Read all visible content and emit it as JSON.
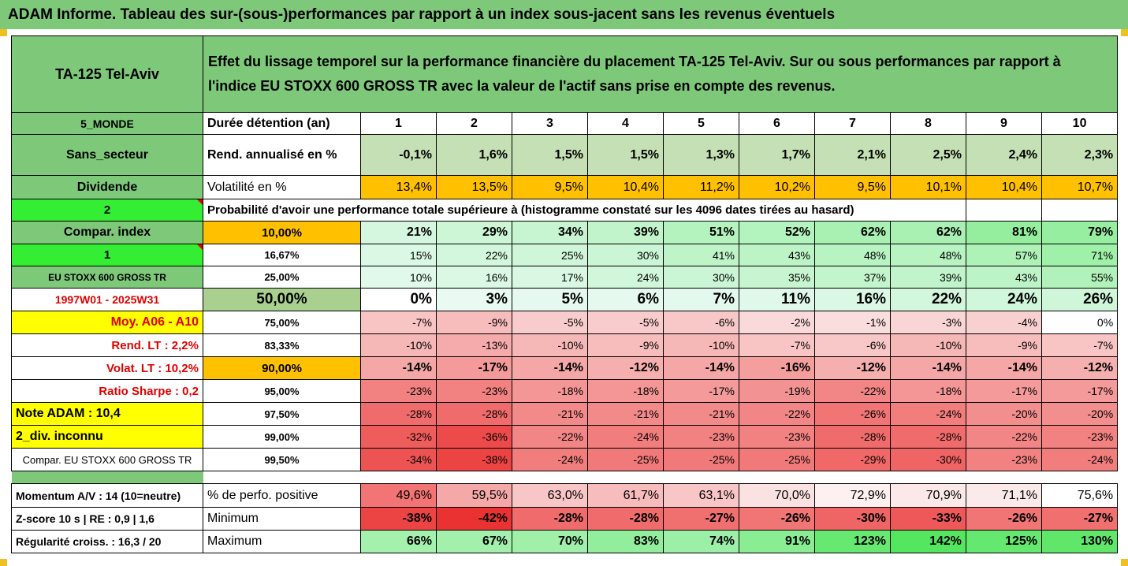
{
  "title": "ADAM Informe. Tableau des sur-(sous-)performances par rapport à un index sous-jacent sans les revenus éventuels",
  "header": {
    "asset": "TA-125 Tel-Aviv",
    "description_line1": "Effet du lissage temporel sur la performance financière du placement TA-125 Tel-Aviv. Sur ou sous performances par rapport à",
    "description_line2": "l'indice EU STOXX 600 GROSS TR avec la valeur de l'actif sans prise en compte des revenus."
  },
  "left_labels": {
    "zone": "5_MONDE",
    "sector": "Sans_secteur",
    "dividend": "Dividende",
    "num2": "2",
    "compar_index": "Compar. index",
    "num1": "1",
    "index_name": "EU STOXX 600 GROSS TR",
    "period": "1997W01 - 2025W31",
    "moy": "Moy. A06 - A10",
    "rend_lt": "Rend. LT :    2,2%",
    "volat_lt": "Volat. LT :   10,2%",
    "sharpe": "Ratio Sharpe :    0,2",
    "note": "Note ADAM : 10,4",
    "div": "2_div. inconnu",
    "compar_full": "Compar. EU STOXX 600 GROSS TR",
    "momentum": "Momentum A/V : 14 (10=neutre)",
    "zscore": "Z-score 10 s  |  RE : 0,9  |  1,6",
    "regularite": "Régularité croiss. : 16,3 / 20"
  },
  "row_labels": {
    "duration": "Durée détention (an)",
    "rend": "Rend. annualisé en %",
    "volat": "Volatilité en %",
    "proba": "Probabilité d'avoir une performance totale supérieure à (histogramme constaté sur les 4096 dates tirées au hasard)",
    "pct_positive": "% de perfo. positive",
    "minimum": "Minimum",
    "maximum": "Maximum"
  },
  "years": [
    "1",
    "2",
    "3",
    "4",
    "5",
    "6",
    "7",
    "8",
    "9",
    "10"
  ],
  "rend": [
    "-0,1%",
    "1,6%",
    "1,5%",
    "1,5%",
    "1,3%",
    "1,7%",
    "2,1%",
    "2,5%",
    "2,4%",
    "2,3%"
  ],
  "volat": [
    "13,4%",
    "13,5%",
    "9,5%",
    "10,4%",
    "11,2%",
    "10,2%",
    "9,5%",
    "10,1%",
    "10,4%",
    "10,7%"
  ],
  "percentiles": [
    {
      "level": "10,00%",
      "values": [
        "21%",
        "29%",
        "34%",
        "39%",
        "51%",
        "52%",
        "62%",
        "62%",
        "81%",
        "79%"
      ]
    },
    {
      "level": "16,67%",
      "values": [
        "15%",
        "22%",
        "25%",
        "30%",
        "41%",
        "43%",
        "48%",
        "48%",
        "57%",
        "71%"
      ]
    },
    {
      "level": "25,00%",
      "values": [
        "10%",
        "16%",
        "17%",
        "24%",
        "30%",
        "35%",
        "37%",
        "39%",
        "43%",
        "55%"
      ]
    },
    {
      "level": "50,00%",
      "values": [
        "0%",
        "3%",
        "5%",
        "6%",
        "7%",
        "11%",
        "16%",
        "22%",
        "24%",
        "26%"
      ]
    },
    {
      "level": "75,00%",
      "values": [
        "-7%",
        "-9%",
        "-5%",
        "-5%",
        "-6%",
        "-2%",
        "-1%",
        "-3%",
        "-4%",
        "0%"
      ]
    },
    {
      "level": "83,33%",
      "values": [
        "-10%",
        "-13%",
        "-10%",
        "-9%",
        "-10%",
        "-7%",
        "-6%",
        "-10%",
        "-9%",
        "-7%"
      ]
    },
    {
      "level": "90,00%",
      "values": [
        "-14%",
        "-17%",
        "-14%",
        "-12%",
        "-14%",
        "-16%",
        "-12%",
        "-14%",
        "-14%",
        "-12%"
      ]
    },
    {
      "level": "95,00%",
      "values": [
        "-23%",
        "-23%",
        "-18%",
        "-18%",
        "-17%",
        "-19%",
        "-22%",
        "-18%",
        "-17%",
        "-17%"
      ]
    },
    {
      "level": "97,50%",
      "values": [
        "-28%",
        "-28%",
        "-21%",
        "-21%",
        "-21%",
        "-22%",
        "-26%",
        "-24%",
        "-20%",
        "-20%"
      ]
    },
    {
      "level": "99,00%",
      "values": [
        "-32%",
        "-36%",
        "-22%",
        "-24%",
        "-23%",
        "-23%",
        "-28%",
        "-28%",
        "-22%",
        "-23%"
      ]
    },
    {
      "level": "99,50%",
      "values": [
        "-34%",
        "-38%",
        "-24%",
        "-25%",
        "-25%",
        "-25%",
        "-29%",
        "-30%",
        "-23%",
        "-24%"
      ]
    }
  ],
  "pct_positive": [
    "49,6%",
    "59,5%",
    "63,0%",
    "61,7%",
    "63,1%",
    "70,0%",
    "72,9%",
    "70,9%",
    "71,1%",
    "75,6%"
  ],
  "minimum": [
    "-38%",
    "-42%",
    "-28%",
    "-28%",
    "-27%",
    "-26%",
    "-30%",
    "-33%",
    "-26%",
    "-27%"
  ],
  "maximum": [
    "66%",
    "67%",
    "70%",
    "83%",
    "74%",
    "91%",
    "123%",
    "142%",
    "125%",
    "130%"
  ],
  "colors": {
    "title_green": "#7ec87a",
    "bright_green": "#33ee33",
    "yellow": "#ffff00",
    "orange": "#ffc000",
    "red_text": "#e00000"
  }
}
